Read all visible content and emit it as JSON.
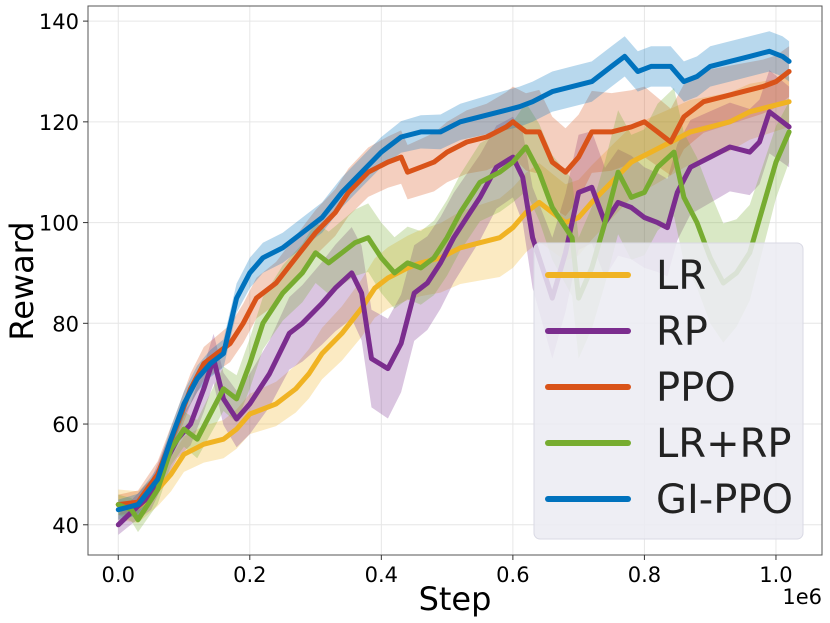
{
  "chart_data": {
    "type": "line",
    "title": "",
    "xlabel": "Step",
    "ylabel": "Reward",
    "x_offset_label": "1e6",
    "xlim": [
      -0.046,
      1.07
    ],
    "ylim": [
      34,
      143
    ],
    "xticks": [
      0.0,
      0.2,
      0.4,
      0.6,
      0.8,
      1.0
    ],
    "xtick_labels": [
      "0.0",
      "0.2",
      "0.4",
      "0.6",
      "0.8",
      "1.0"
    ],
    "yticks": [
      40,
      60,
      80,
      100,
      120,
      140
    ],
    "ytick_labels": [
      "40",
      "60",
      "80",
      "100",
      "120",
      "140"
    ],
    "grid": true,
    "legend_position": "bottom-right",
    "series": [
      {
        "name": "LR",
        "color": "#f0b323",
        "points": [
          [
            0.0,
            44
          ],
          [
            0.03,
            43.5
          ],
          [
            0.06,
            47
          ],
          [
            0.08,
            50
          ],
          [
            0.1,
            54
          ],
          [
            0.13,
            56
          ],
          [
            0.16,
            57
          ],
          [
            0.18,
            59
          ],
          [
            0.2,
            62
          ],
          [
            0.24,
            64
          ],
          [
            0.27,
            67
          ],
          [
            0.29,
            70
          ],
          [
            0.31,
            74
          ],
          [
            0.34,
            78
          ],
          [
            0.37,
            83
          ],
          [
            0.39,
            87
          ],
          [
            0.41,
            89
          ],
          [
            0.44,
            91
          ],
          [
            0.46,
            92
          ],
          [
            0.49,
            93
          ],
          [
            0.52,
            95
          ],
          [
            0.55,
            96
          ],
          [
            0.58,
            97
          ],
          [
            0.6,
            99
          ],
          [
            0.62,
            102
          ],
          [
            0.64,
            104
          ],
          [
            0.66,
            102
          ],
          [
            0.68,
            100
          ],
          [
            0.7,
            101
          ],
          [
            0.72,
            104
          ],
          [
            0.75,
            108
          ],
          [
            0.78,
            112
          ],
          [
            0.81,
            114
          ],
          [
            0.84,
            116
          ],
          [
            0.87,
            118
          ],
          [
            0.9,
            119
          ],
          [
            0.93,
            120
          ],
          [
            0.96,
            122
          ],
          [
            0.99,
            123
          ],
          [
            1.02,
            124
          ]
        ],
        "band": [
          [
            0.0,
            3
          ],
          [
            0.2,
            4
          ],
          [
            0.4,
            6
          ],
          [
            0.6,
            8
          ],
          [
            0.8,
            7
          ],
          [
            1.02,
            5
          ]
        ]
      },
      {
        "name": "RP",
        "color": "#7b2d8e",
        "points": [
          [
            0.0,
            40
          ],
          [
            0.02,
            42.5
          ],
          [
            0.05,
            46
          ],
          [
            0.07,
            52
          ],
          [
            0.09,
            57
          ],
          [
            0.11,
            60
          ],
          [
            0.13,
            67
          ],
          [
            0.145,
            73
          ],
          [
            0.16,
            65
          ],
          [
            0.18,
            61
          ],
          [
            0.2,
            64
          ],
          [
            0.23,
            70
          ],
          [
            0.26,
            78
          ],
          [
            0.28,
            80
          ],
          [
            0.31,
            84
          ],
          [
            0.33,
            87
          ],
          [
            0.355,
            90
          ],
          [
            0.37,
            86
          ],
          [
            0.385,
            73
          ],
          [
            0.41,
            71
          ],
          [
            0.43,
            76
          ],
          [
            0.45,
            86
          ],
          [
            0.47,
            88
          ],
          [
            0.49,
            92
          ],
          [
            0.51,
            97
          ],
          [
            0.53,
            101
          ],
          [
            0.55,
            105
          ],
          [
            0.575,
            111
          ],
          [
            0.6,
            113
          ],
          [
            0.615,
            109
          ],
          [
            0.63,
            97
          ],
          [
            0.65,
            89
          ],
          [
            0.66,
            85
          ],
          [
            0.68,
            94
          ],
          [
            0.7,
            106
          ],
          [
            0.72,
            107
          ],
          [
            0.74,
            100
          ],
          [
            0.76,
            104
          ],
          [
            0.78,
            103
          ],
          [
            0.8,
            101
          ],
          [
            0.82,
            100
          ],
          [
            0.835,
            99
          ],
          [
            0.85,
            106
          ],
          [
            0.87,
            111
          ],
          [
            0.9,
            113
          ],
          [
            0.93,
            115
          ],
          [
            0.96,
            114
          ],
          [
            0.975,
            116
          ],
          [
            0.99,
            122
          ],
          [
            1.02,
            119
          ]
        ],
        "band": [
          [
            0.0,
            2
          ],
          [
            0.2,
            6
          ],
          [
            0.4,
            10
          ],
          [
            0.6,
            8
          ],
          [
            0.66,
            12
          ],
          [
            0.8,
            10
          ],
          [
            1.02,
            8
          ]
        ]
      },
      {
        "name": "PPO",
        "color": "#d95319",
        "points": [
          [
            0.0,
            44
          ],
          [
            0.03,
            44.5
          ],
          [
            0.06,
            50
          ],
          [
            0.09,
            60
          ],
          [
            0.11,
            67
          ],
          [
            0.13,
            72
          ],
          [
            0.15,
            74
          ],
          [
            0.17,
            76
          ],
          [
            0.19,
            80
          ],
          [
            0.21,
            85
          ],
          [
            0.24,
            88
          ],
          [
            0.27,
            93
          ],
          [
            0.3,
            98
          ],
          [
            0.33,
            102
          ],
          [
            0.35,
            106
          ],
          [
            0.38,
            110
          ],
          [
            0.41,
            112
          ],
          [
            0.43,
            113
          ],
          [
            0.44,
            110
          ],
          [
            0.46,
            111
          ],
          [
            0.48,
            112
          ],
          [
            0.5,
            114
          ],
          [
            0.53,
            116
          ],
          [
            0.56,
            117
          ],
          [
            0.59,
            119
          ],
          [
            0.6,
            120
          ],
          [
            0.62,
            118
          ],
          [
            0.64,
            118
          ],
          [
            0.66,
            112
          ],
          [
            0.68,
            110
          ],
          [
            0.7,
            113
          ],
          [
            0.72,
            118
          ],
          [
            0.75,
            118
          ],
          [
            0.78,
            119
          ],
          [
            0.8,
            120
          ],
          [
            0.82,
            118
          ],
          [
            0.84,
            116
          ],
          [
            0.86,
            121
          ],
          [
            0.89,
            124
          ],
          [
            0.92,
            125
          ],
          [
            0.95,
            126
          ],
          [
            0.98,
            127
          ],
          [
            1.0,
            128
          ],
          [
            1.02,
            130
          ]
        ],
        "band": [
          [
            0.0,
            2
          ],
          [
            0.2,
            4
          ],
          [
            0.4,
            5
          ],
          [
            0.6,
            7
          ],
          [
            0.66,
            9
          ],
          [
            0.8,
            7
          ],
          [
            1.02,
            5
          ]
        ]
      },
      {
        "name": "LR+RP",
        "color": "#77ac30",
        "points": [
          [
            0.0,
            44
          ],
          [
            0.02,
            43
          ],
          [
            0.03,
            41
          ],
          [
            0.06,
            47
          ],
          [
            0.08,
            55
          ],
          [
            0.1,
            59
          ],
          [
            0.12,
            57
          ],
          [
            0.14,
            62
          ],
          [
            0.16,
            67
          ],
          [
            0.18,
            65
          ],
          [
            0.2,
            72
          ],
          [
            0.22,
            80
          ],
          [
            0.25,
            86
          ],
          [
            0.28,
            90
          ],
          [
            0.3,
            94
          ],
          [
            0.32,
            92
          ],
          [
            0.34,
            94
          ],
          [
            0.36,
            96
          ],
          [
            0.38,
            97
          ],
          [
            0.4,
            93
          ],
          [
            0.42,
            90
          ],
          [
            0.44,
            92
          ],
          [
            0.46,
            91
          ],
          [
            0.48,
            93
          ],
          [
            0.5,
            97
          ],
          [
            0.52,
            102
          ],
          [
            0.55,
            108
          ],
          [
            0.58,
            110
          ],
          [
            0.6,
            112
          ],
          [
            0.62,
            115
          ],
          [
            0.64,
            110
          ],
          [
            0.66,
            103
          ],
          [
            0.675,
            100
          ],
          [
            0.69,
            97
          ],
          [
            0.7,
            85
          ],
          [
            0.72,
            91
          ],
          [
            0.74,
            100
          ],
          [
            0.76,
            110
          ],
          [
            0.78,
            105
          ],
          [
            0.8,
            106
          ],
          [
            0.82,
            111
          ],
          [
            0.845,
            114
          ],
          [
            0.86,
            105
          ],
          [
            0.88,
            100
          ],
          [
            0.9,
            93
          ],
          [
            0.92,
            88
          ],
          [
            0.94,
            90
          ],
          [
            0.96,
            94
          ],
          [
            0.98,
            103
          ],
          [
            1.0,
            112
          ],
          [
            1.02,
            118
          ]
        ],
        "band": [
          [
            0.0,
            2
          ],
          [
            0.2,
            5
          ],
          [
            0.4,
            7
          ],
          [
            0.6,
            8
          ],
          [
            0.7,
            12
          ],
          [
            0.9,
            13
          ],
          [
            1.02,
            6
          ]
        ]
      },
      {
        "name": "GI-PPO",
        "color": "#0072bd",
        "points": [
          [
            0.0,
            43
          ],
          [
            0.03,
            44
          ],
          [
            0.06,
            49
          ],
          [
            0.08,
            57
          ],
          [
            0.1,
            64
          ],
          [
            0.12,
            69
          ],
          [
            0.14,
            72
          ],
          [
            0.16,
            74
          ],
          [
            0.18,
            85
          ],
          [
            0.2,
            90
          ],
          [
            0.22,
            93
          ],
          [
            0.25,
            95
          ],
          [
            0.28,
            98
          ],
          [
            0.31,
            101
          ],
          [
            0.34,
            106
          ],
          [
            0.37,
            110
          ],
          [
            0.4,
            114
          ],
          [
            0.43,
            117
          ],
          [
            0.46,
            118
          ],
          [
            0.49,
            118
          ],
          [
            0.52,
            120
          ],
          [
            0.55,
            121
          ],
          [
            0.58,
            122
          ],
          [
            0.61,
            123
          ],
          [
            0.63,
            124
          ],
          [
            0.66,
            126
          ],
          [
            0.69,
            127
          ],
          [
            0.72,
            128
          ],
          [
            0.75,
            131
          ],
          [
            0.77,
            133
          ],
          [
            0.79,
            130
          ],
          [
            0.81,
            131
          ],
          [
            0.84,
            131
          ],
          [
            0.86,
            128
          ],
          [
            0.88,
            129
          ],
          [
            0.9,
            131
          ],
          [
            0.93,
            132
          ],
          [
            0.96,
            133
          ],
          [
            0.99,
            134
          ],
          [
            1.01,
            133
          ],
          [
            1.02,
            132
          ]
        ],
        "band": [
          [
            0.0,
            2
          ],
          [
            0.2,
            3
          ],
          [
            0.4,
            3
          ],
          [
            0.6,
            4
          ],
          [
            0.8,
            4
          ],
          [
            1.02,
            4
          ]
        ]
      }
    ]
  }
}
